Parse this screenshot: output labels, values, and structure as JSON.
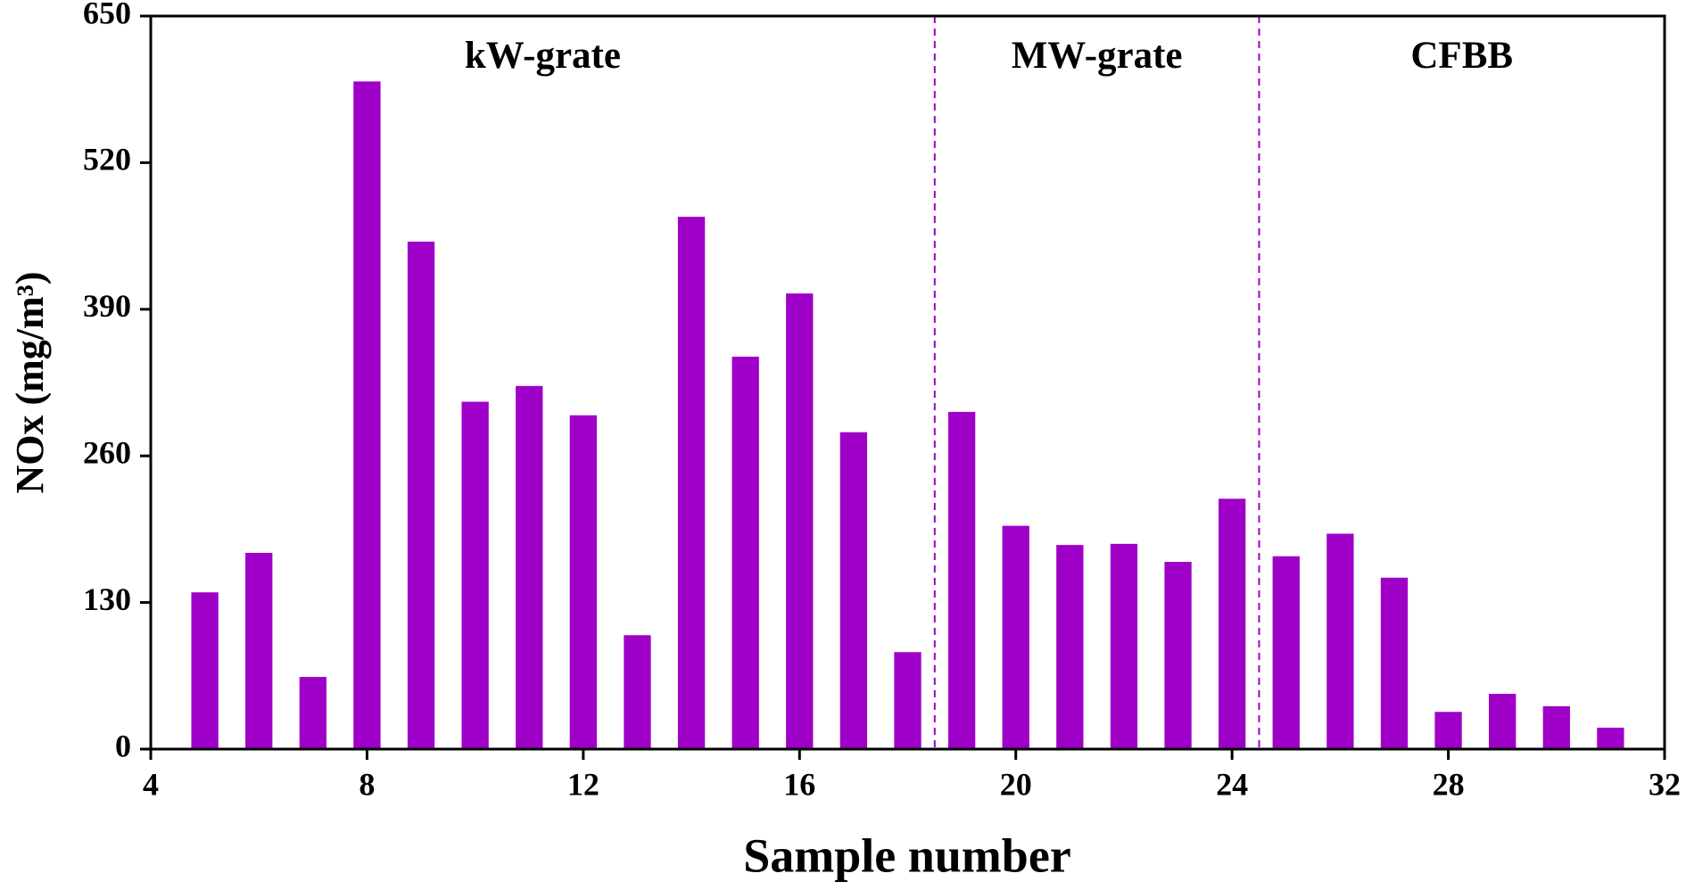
{
  "chart_data": {
    "type": "bar",
    "xlabel": "Sample number",
    "ylabel": "NOx (mg/m³)",
    "x": [
      5,
      6,
      7,
      8,
      9,
      10,
      11,
      12,
      13,
      14,
      15,
      16,
      17,
      18,
      19,
      20,
      21,
      22,
      23,
      24,
      25,
      26,
      27,
      28,
      29,
      30,
      31
    ],
    "values": [
      139,
      174,
      64,
      592,
      450,
      308,
      322,
      296,
      101,
      472,
      348,
      404,
      281,
      86,
      299,
      198,
      181,
      182,
      166,
      222,
      171,
      191,
      152,
      33,
      49,
      38,
      19
    ],
    "color": "#9f00c8",
    "xlim": [
      4,
      32
    ],
    "xticks": [
      4,
      8,
      12,
      16,
      20,
      24,
      28,
      32
    ],
    "ylim": [
      0,
      650
    ],
    "yticks": [
      0,
      130,
      260,
      390,
      520,
      650
    ],
    "dividers": [
      18.5,
      24.5
    ],
    "divider_color": "#9f00c8",
    "regions": [
      "kW-grate",
      "MW-grate",
      "CFBB"
    ],
    "grid": false
  }
}
